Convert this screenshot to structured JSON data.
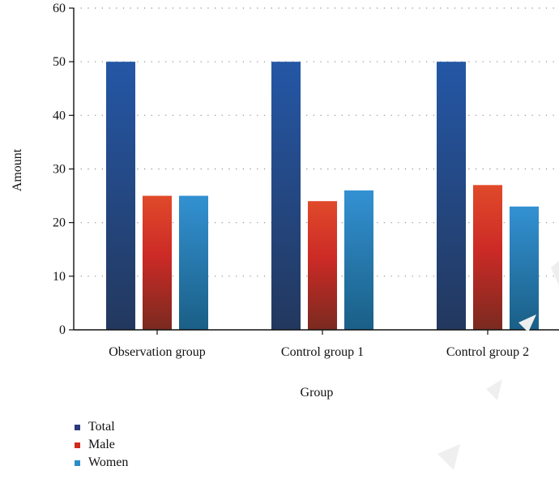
{
  "chart_data": {
    "type": "bar",
    "xlabel": "Group",
    "ylabel": "Amount",
    "ylim": [
      0,
      60
    ],
    "yticks": [
      0,
      10,
      20,
      30,
      40,
      50,
      60
    ],
    "grid": "dotted horizontal",
    "legend_position": "bottom-left",
    "categories": [
      "Observation group",
      "Control group 1",
      "Control group 2"
    ],
    "series": [
      {
        "name": "Total",
        "values": [
          50,
          50,
          50
        ],
        "color": "#24477f",
        "legend_color": "#2a3a7a"
      },
      {
        "name": "Male",
        "values": [
          25,
          24,
          27
        ],
        "color": "#cf3323",
        "legend_color": "#cf2a1e"
      },
      {
        "name": "Women",
        "values": [
          25,
          26,
          23
        ],
        "color": "#2a8dc8",
        "legend_color": "#2a8dc8"
      }
    ]
  }
}
